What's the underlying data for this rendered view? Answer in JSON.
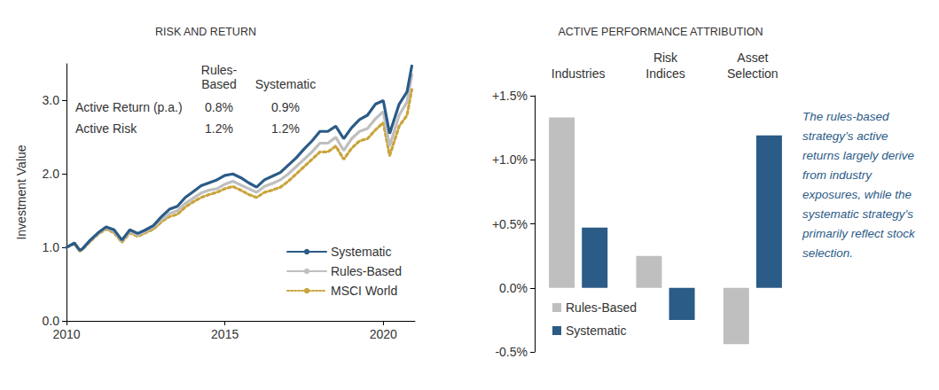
{
  "chart_data": [
    {
      "type": "line",
      "title": "RISK AND RETURN",
      "y_label": "Investment Value",
      "x": [
        2010,
        2010.25,
        2010.42,
        2010.5,
        2010.75,
        2011,
        2011.25,
        2011.5,
        2011.75,
        2012,
        2012.25,
        2012.5,
        2012.75,
        2013,
        2013.25,
        2013.5,
        2013.75,
        2014,
        2014.25,
        2014.5,
        2014.75,
        2015,
        2015.25,
        2015.5,
        2015.75,
        2016,
        2016.25,
        2016.5,
        2016.75,
        2017,
        2017.25,
        2017.5,
        2017.75,
        2018,
        2018.25,
        2018.5,
        2018.75,
        2019,
        2019.25,
        2019.5,
        2019.75,
        2020,
        2020.2,
        2020.5,
        2020.75,
        2020.9
      ],
      "xlim": [
        2010,
        2021
      ],
      "xticks": [
        2010,
        2015,
        2020
      ],
      "ylim": [
        0,
        3.5
      ],
      "yticks": [
        {
          "value": 0,
          "label": "0.0"
        },
        {
          "value": 1,
          "label": "1.0"
        },
        {
          "value": 2,
          "label": "2.0"
        },
        {
          "value": 3,
          "label": "3.0"
        }
      ],
      "grid": false,
      "legend": "lower right",
      "series": [
        {
          "name": "Systematic",
          "color": "#2b5b87",
          "line_style": "solid",
          "marker": "none",
          "values": [
            1.0,
            1.06,
            0.96,
            0.98,
            1.1,
            1.2,
            1.28,
            1.24,
            1.1,
            1.24,
            1.19,
            1.24,
            1.3,
            1.42,
            1.52,
            1.56,
            1.68,
            1.76,
            1.84,
            1.88,
            1.92,
            1.98,
            2.0,
            1.95,
            1.88,
            1.82,
            1.92,
            1.97,
            2.02,
            2.12,
            2.22,
            2.34,
            2.45,
            2.58,
            2.58,
            2.65,
            2.48,
            2.63,
            2.74,
            2.8,
            2.95,
            3.0,
            2.55,
            2.95,
            3.12,
            3.47
          ]
        },
        {
          "name": "Rules-Based",
          "color": "#bfbfbf",
          "line_style": "solid",
          "marker": "none",
          "values": [
            1.0,
            1.06,
            0.96,
            0.98,
            1.09,
            1.19,
            1.27,
            1.22,
            1.09,
            1.22,
            1.17,
            1.22,
            1.28,
            1.38,
            1.46,
            1.5,
            1.6,
            1.67,
            1.74,
            1.78,
            1.8,
            1.86,
            1.9,
            1.85,
            1.8,
            1.75,
            1.83,
            1.87,
            1.92,
            2.0,
            2.1,
            2.2,
            2.3,
            2.42,
            2.42,
            2.5,
            2.32,
            2.48,
            2.58,
            2.62,
            2.75,
            2.85,
            2.38,
            2.8,
            2.98,
            3.35
          ]
        },
        {
          "name": "MSCI World",
          "color": "#c9a43c",
          "line_style": "dotted",
          "marker": "none",
          "values": [
            1.0,
            1.05,
            0.95,
            0.97,
            1.08,
            1.18,
            1.25,
            1.2,
            1.07,
            1.2,
            1.15,
            1.2,
            1.25,
            1.35,
            1.42,
            1.45,
            1.55,
            1.62,
            1.68,
            1.72,
            1.75,
            1.8,
            1.83,
            1.78,
            1.72,
            1.68,
            1.75,
            1.78,
            1.82,
            1.9,
            2.0,
            2.1,
            2.2,
            2.3,
            2.3,
            2.38,
            2.2,
            2.35,
            2.45,
            2.48,
            2.6,
            2.7,
            2.25,
            2.65,
            2.8,
            3.15
          ]
        }
      ],
      "annotations": {
        "table": {
          "columns": [
            "Rules-\nBased",
            "Systematic"
          ],
          "rows": [
            {
              "label": "Active Return (p.a.)",
              "values": [
                {
                  "value": 0.8,
                  "label": "0.8%"
                },
                {
                  "value": 0.9,
                  "label": "0.9%"
                }
              ]
            },
            {
              "label": "Active Risk",
              "values": [
                {
                  "value": 1.2,
                  "label": "1.2%"
                },
                {
                  "value": 1.2,
                  "label": "1.2%"
                }
              ]
            }
          ]
        }
      }
    },
    {
      "type": "bar",
      "title": "ACTIVE PERFORMANCE ATTRIBUTION",
      "categories": [
        "Industries",
        "Risk\nIndices",
        "Asset\nSelection"
      ],
      "ylim": [
        -0.5,
        1.5
      ],
      "yticks": [
        {
          "value": -0.5,
          "label": "-0.5%"
        },
        {
          "value": 0,
          "label": "0.0%"
        },
        {
          "value": 0.5,
          "label": "+0.5%"
        },
        {
          "value": 1,
          "label": "+1.0%"
        },
        {
          "value": 1.5,
          "label": "+1.5%"
        }
      ],
      "grid": false,
      "legend": "lower left",
      "series": [
        {
          "name": "Rules-Based",
          "color": "#bfbfbf",
          "values": [
            1.33,
            0.25,
            -0.44
          ]
        },
        {
          "name": "Systematic",
          "color": "#2b5b87",
          "values": [
            0.47,
            -0.25,
            1.19
          ]
        }
      ],
      "annotations": [
        "The rules-based\nstrategy’s active\nreturns largely derive\nfrom industry\nexposures, while the\nsystematic strategy’s\nprimarily reflect stock\nselection."
      ]
    }
  ]
}
